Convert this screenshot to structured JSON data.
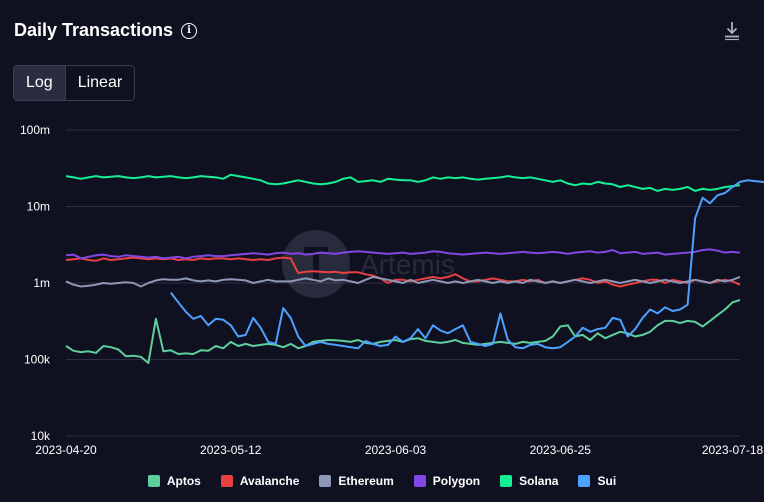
{
  "header": {
    "title": "Daily Transactions",
    "toggle": {
      "log_label": "Log",
      "linear_label": "Linear",
      "active": "log"
    }
  },
  "watermark": "Artemis",
  "chart_data": {
    "type": "line",
    "title": "Daily Transactions",
    "y_scale": "log",
    "ylim": [
      10000,
      100000000
    ],
    "y_ticks": [
      {
        "value": 100000000,
        "label": "100m"
      },
      {
        "value": 10000000,
        "label": "10m"
      },
      {
        "value": 1000000,
        "label": "1m"
      },
      {
        "value": 100000,
        "label": "100k"
      },
      {
        "value": 10000,
        "label": "10k"
      }
    ],
    "x_range": [
      0,
      90
    ],
    "x_ticks": [
      {
        "index": 0,
        "label": "2023-04-20"
      },
      {
        "index": 22,
        "label": "2023-05-12"
      },
      {
        "index": 44,
        "label": "2023-06-03"
      },
      {
        "index": 66,
        "label": "2023-06-25"
      },
      {
        "index": 89,
        "label": "2023-07-18"
      }
    ],
    "legend_position": "bottom",
    "series": [
      {
        "name": "Aptos",
        "color": "#5ecf9c",
        "start_index": 0,
        "values": [
          150000,
          130000,
          125000,
          128000,
          122000,
          150000,
          145000,
          135000,
          110000,
          112000,
          108000,
          90000,
          340000,
          128000,
          132000,
          118000,
          120000,
          118000,
          132000,
          130000,
          150000,
          140000,
          170000,
          150000,
          160000,
          150000,
          155000,
          160000,
          155000,
          145000,
          160000,
          140000,
          150000,
          170000,
          175000,
          180000,
          178000,
          175000,
          170000,
          180000,
          165000,
          160000,
          170000,
          175000,
          180000,
          170000,
          185000,
          190000,
          175000,
          170000,
          165000,
          170000,
          180000,
          165000,
          160000,
          155000,
          160000,
          165000,
          170000,
          165000,
          160000,
          170000,
          165000,
          170000,
          175000,
          200000,
          270000,
          280000,
          200000,
          210000,
          180000,
          220000,
          190000,
          210000,
          230000,
          220000,
          200000,
          210000,
          230000,
          280000,
          320000,
          320000,
          300000,
          320000,
          310000,
          270000,
          320000,
          380000,
          450000,
          560000,
          600000
        ]
      },
      {
        "name": "Avalanche",
        "color": "#e84142",
        "start_index": 0,
        "values": [
          2000000,
          2050000,
          2100000,
          2000000,
          1950000,
          2100000,
          2000000,
          2050000,
          2100000,
          2150000,
          2100000,
          2050000,
          2100000,
          2050000,
          2100000,
          2000000,
          2050000,
          2000000,
          2100000,
          2050000,
          2100000,
          2100000,
          2050000,
          2100000,
          2050000,
          2000000,
          2050000,
          2000000,
          2100000,
          2150000,
          2100000,
          1350000,
          1400000,
          1420000,
          1400000,
          1380000,
          1400000,
          1350000,
          1380000,
          1380000,
          1300000,
          1250000,
          1150000,
          1000000,
          1100000,
          1100000,
          1050000,
          1100000,
          1150000,
          1200000,
          1150000,
          1200000,
          1300000,
          1150000,
          1050000,
          1050000,
          1100000,
          1150000,
          1100000,
          1050000,
          1050000,
          1100000,
          1050000,
          1100000,
          1000000,
          1050000,
          1000000,
          1050000,
          1100000,
          1150000,
          1100000,
          1000000,
          1050000,
          950000,
          900000,
          950000,
          1000000,
          1050000,
          1100000,
          1100000,
          1000000,
          1100000,
          1050000,
          1000000,
          1100000,
          1050000,
          1000000,
          1050000,
          1100000,
          1050000,
          950000
        ]
      },
      {
        "name": "Ethereum",
        "color": "#8e97b5",
        "start_index": 0,
        "values": [
          1050000,
          950000,
          900000,
          920000,
          950000,
          1000000,
          980000,
          1000000,
          1020000,
          1000000,
          900000,
          1000000,
          1080000,
          1120000,
          1100000,
          1100000,
          1150000,
          1080000,
          1050000,
          1080000,
          1050000,
          1100000,
          1120000,
          1100000,
          1080000,
          1000000,
          1050000,
          1100000,
          1050000,
          1050000,
          1050000,
          1100000,
          1150000,
          1100000,
          1050000,
          1150000,
          1080000,
          1100000,
          1050000,
          1000000,
          1100000,
          1200000,
          1150000,
          1100000,
          1050000,
          1000000,
          1100000,
          1000000,
          1050000,
          1100000,
          1050000,
          1000000,
          1050000,
          1000000,
          1050000,
          1100000,
          1050000,
          1000000,
          1050000,
          1000000,
          1050000,
          1000000,
          1100000,
          1050000,
          1000000,
          1050000,
          1000000,
          1050000,
          1100000,
          1050000,
          1000000,
          1050000,
          1100000,
          1050000,
          1000000,
          1050000,
          1100000,
          1050000,
          1000000,
          1050000,
          1100000,
          1050000,
          1000000,
          1050000,
          1100000,
          1050000,
          1000000,
          1100000,
          1050000,
          1100000,
          1200000
        ]
      },
      {
        "name": "Polygon",
        "color": "#8247e5",
        "start_index": 0,
        "values": [
          2300000,
          2350000,
          2100000,
          2200000,
          2300000,
          2350000,
          2250000,
          2200000,
          2300000,
          2250000,
          2200000,
          2150000,
          2200000,
          2100000,
          2150000,
          2200000,
          2100000,
          2200000,
          2250000,
          2300000,
          2250000,
          2250000,
          2300000,
          2350000,
          2400000,
          2450000,
          2400000,
          2350000,
          2450000,
          2500000,
          2400000,
          2450000,
          2350000,
          2400000,
          2500000,
          2450000,
          2400000,
          2500000,
          2550000,
          2600000,
          2550000,
          2500000,
          2450000,
          2400000,
          2450000,
          2500000,
          2400000,
          2450000,
          2500000,
          2600000,
          2550000,
          2450000,
          2400000,
          2350000,
          2400000,
          2450000,
          2500000,
          2450000,
          2400000,
          2450000,
          2500000,
          2550000,
          2500000,
          2450000,
          2500000,
          2550000,
          2500000,
          2400000,
          2500000,
          2550000,
          2600000,
          2500000,
          2550000,
          2700000,
          2450000,
          2500000,
          2550000,
          2400000,
          2450000,
          2500000,
          2350000,
          2400000,
          2450000,
          2500000,
          2550000,
          2700000,
          2750000,
          2650000,
          2500000,
          2550000,
          2500000
        ]
      },
      {
        "name": "Solana",
        "color": "#14f195",
        "start_index": 0,
        "values": [
          25000000,
          24000000,
          23000000,
          24000000,
          25000000,
          24000000,
          24500000,
          25000000,
          24000000,
          23500000,
          24000000,
          25000000,
          24000000,
          24500000,
          25000000,
          24000000,
          23500000,
          24000000,
          25000000,
          24500000,
          24000000,
          23000000,
          26000000,
          25000000,
          24000000,
          23000000,
          22000000,
          20000000,
          19500000,
          20000000,
          21000000,
          22000000,
          21000000,
          20000000,
          19500000,
          20000000,
          21000000,
          23000000,
          24000000,
          21000000,
          21500000,
          22000000,
          21000000,
          23000000,
          22500000,
          22000000,
          22000000,
          21000000,
          22000000,
          24000000,
          23000000,
          24000000,
          23500000,
          24000000,
          23000000,
          22500000,
          23000000,
          23500000,
          24000000,
          25000000,
          24000000,
          23500000,
          24000000,
          23000000,
          22000000,
          21000000,
          22000000,
          20000000,
          19000000,
          20000000,
          19500000,
          21000000,
          20000000,
          19500000,
          18000000,
          19000000,
          18000000,
          17000000,
          17500000,
          16000000,
          17000000,
          16500000,
          17000000,
          18000000,
          16000000,
          17000000,
          16500000,
          17000000,
          18000000,
          18500000,
          19000000
        ]
      },
      {
        "name": "Sui",
        "color": "#4da2ff",
        "start_index": 14,
        "values": [
          750000,
          560000,
          420000,
          340000,
          370000,
          280000,
          340000,
          330000,
          280000,
          200000,
          210000,
          350000,
          260000,
          170000,
          160000,
          470000,
          350000,
          200000,
          150000,
          160000,
          170000,
          160000,
          155000,
          150000,
          145000,
          140000,
          175000,
          160000,
          150000,
          155000,
          200000,
          170000,
          190000,
          250000,
          190000,
          280000,
          240000,
          220000,
          250000,
          280000,
          170000,
          160000,
          150000,
          160000,
          400000,
          180000,
          145000,
          140000,
          155000,
          160000,
          145000,
          140000,
          145000,
          170000,
          200000,
          260000,
          230000,
          250000,
          260000,
          350000,
          330000,
          200000,
          250000,
          350000,
          450000,
          400000,
          480000,
          430000,
          450000,
          520000,
          7000000,
          13000000,
          11000000,
          14000000,
          15000000,
          18000000,
          21000000,
          22000000,
          21500000,
          21000000,
          20000000,
          28000000
        ]
      }
    ]
  }
}
